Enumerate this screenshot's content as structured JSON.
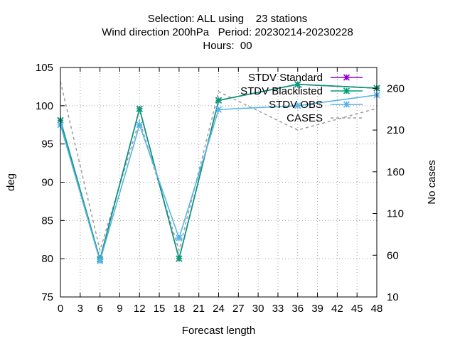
{
  "chart_data": {
    "type": "line",
    "title": [
      "Selection: ALL using    23 stations",
      "Wind direction 200hPa   Period: 20230214-20230228",
      "Hours:  00"
    ],
    "xlabel": "Forecast length",
    "ylabel": "deg",
    "y2label": "No cases",
    "xlim": [
      0,
      48
    ],
    "ylim": [
      75,
      105
    ],
    "y2lim": [
      10,
      285
    ],
    "xticks": [
      0,
      3,
      6,
      9,
      12,
      15,
      18,
      21,
      24,
      27,
      30,
      33,
      36,
      39,
      42,
      45,
      48
    ],
    "yticks": [
      75,
      80,
      85,
      90,
      95,
      100,
      105
    ],
    "y2ticks": [
      10,
      60,
      110,
      160,
      210,
      260
    ],
    "grid": true,
    "legend_position": "top-right",
    "series": [
      {
        "name": "STDV Standard",
        "color": "#9400d3",
        "axis": "y",
        "dash": false,
        "marker": "x",
        "x": [
          0,
          6,
          12,
          18,
          24,
          36,
          48
        ],
        "values": [
          98.1,
          79.9,
          99.6,
          80.0,
          100.7,
          102.8,
          102.3
        ]
      },
      {
        "name": "STDV Blacklisted",
        "color": "#009e73",
        "axis": "y",
        "dash": false,
        "marker": "x",
        "x": [
          0,
          6,
          12,
          18,
          24,
          36,
          48
        ],
        "values": [
          98.1,
          79.9,
          99.6,
          80.0,
          100.7,
          102.8,
          102.3
        ]
      },
      {
        "name": "STDV OBS",
        "color": "#56b4e9",
        "axis": "y",
        "dash": false,
        "marker": "x",
        "x": [
          0,
          6,
          12,
          18,
          24,
          36,
          48
        ],
        "values": [
          97.5,
          79.7,
          97.5,
          82.7,
          99.5,
          100.0,
          101.4
        ]
      },
      {
        "name": "CASES",
        "color": "#999999",
        "axis": "y2",
        "dash": true,
        "marker": "none",
        "x": [
          0,
          6,
          12,
          18,
          24,
          36,
          48
        ],
        "values": [
          268,
          66,
          222,
          66,
          256,
          210,
          236
        ]
      }
    ]
  }
}
